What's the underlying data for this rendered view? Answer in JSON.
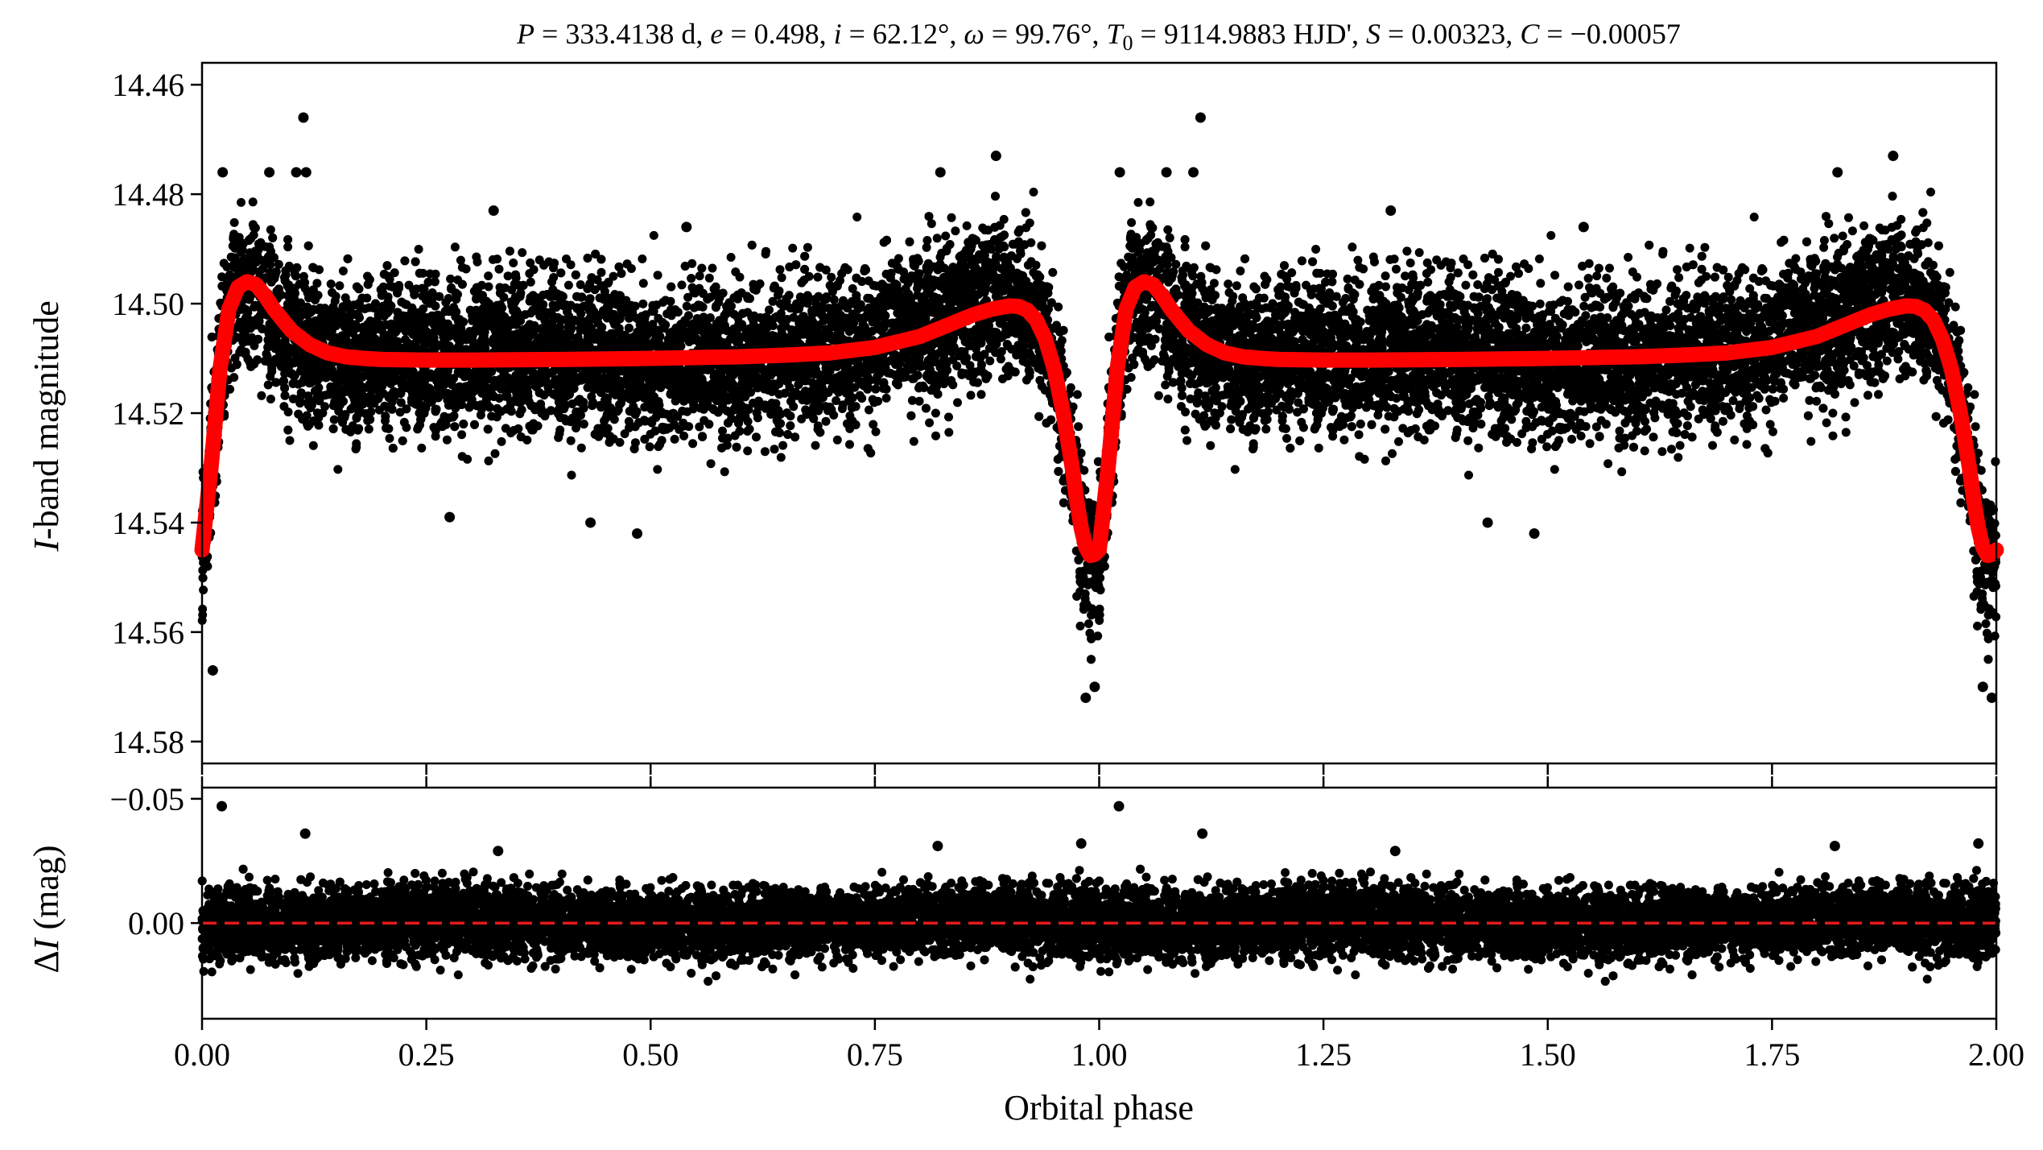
{
  "chart_data": [
    {
      "id": "light_curve",
      "type": "scatter",
      "title": "P = 333.4138 d, e = 0.498, i = 62.12°, ω = 99.76°, T₀ = 9114.9883 HJD', S = 0.00323, C = −0.00057",
      "title_parts": {
        "P_sym": "P",
        "P_val": " = 333.4138 d, ",
        "e_sym": "e",
        "e_val": " = 0.498, ",
        "i_sym": "i",
        "i_val": " = 62.12°, ",
        "w_sym": "ω",
        "w_val": " = 99.76°, ",
        "T_sym": "T",
        "T_sub": "0",
        "T_val": " = 9114.9883 HJD', ",
        "S_sym": "S",
        "S_val": " = 0.00323, ",
        "C_sym": "C",
        "C_val": " = −0.00057"
      },
      "xlabel": "",
      "ylabel": "I-band magnitude",
      "ylabel_parts": {
        "italic": "I",
        "rest": "-band magnitude"
      },
      "xlim": [
        0,
        2
      ],
      "ylim": [
        14.584,
        14.456
      ],
      "y_inverted": true,
      "yticks": [
        14.46,
        14.48,
        14.5,
        14.52,
        14.54,
        14.56,
        14.58
      ],
      "ytick_labels": [
        "14.46",
        "14.48",
        "14.50",
        "14.52",
        "14.54",
        "14.56",
        "14.58"
      ],
      "xticks": [
        0,
        0.25,
        0.5,
        0.75,
        1.0,
        1.25,
        1.5,
        1.75,
        2.0
      ],
      "grid": false,
      "series": [
        {
          "kind": "observations",
          "marker": "circle",
          "color": "#000000",
          "phase_period": 1.0,
          "noise_sigma_mag": 0.007,
          "points_per_phase_cycle": 7000,
          "outliers": [
            {
              "x": 0.012,
              "y": 14.567
            },
            {
              "x": 0.023,
              "y": 14.476
            },
            {
              "x": 0.075,
              "y": 14.476
            },
            {
              "x": 0.113,
              "y": 14.466
            },
            {
              "x": 0.105,
              "y": 14.476
            },
            {
              "x": 0.116,
              "y": 14.476
            },
            {
              "x": 0.325,
              "y": 14.483
            },
            {
              "x": 0.485,
              "y": 14.542
            },
            {
              "x": 0.433,
              "y": 14.54
            },
            {
              "x": 0.276,
              "y": 14.539
            },
            {
              "x": 0.885,
              "y": 14.473
            },
            {
              "x": 0.823,
              "y": 14.476
            },
            {
              "x": 0.985,
              "y": 14.572
            },
            {
              "x": 0.995,
              "y": 14.57
            },
            {
              "x": 1.023,
              "y": 14.476
            },
            {
              "x": 1.075,
              "y": 14.476
            },
            {
              "x": 1.113,
              "y": 14.466
            },
            {
              "x": 1.105,
              "y": 14.476
            },
            {
              "x": 1.325,
              "y": 14.483
            },
            {
              "x": 1.485,
              "y": 14.542
            },
            {
              "x": 1.433,
              "y": 14.54
            },
            {
              "x": 1.885,
              "y": 14.473
            },
            {
              "x": 1.823,
              "y": 14.476
            },
            {
              "x": 1.985,
              "y": 14.57
            },
            {
              "x": 1.995,
              "y": 14.572
            },
            {
              "x": 0.54,
              "y": 14.486
            },
            {
              "x": 1.54,
              "y": 14.486
            }
          ]
        },
        {
          "kind": "model",
          "color": "#ff0000",
          "baseline": 14.5105,
          "x": [
            0.0,
            0.01,
            0.02,
            0.03,
            0.04,
            0.05,
            0.06,
            0.07,
            0.08,
            0.09,
            0.1,
            0.12,
            0.14,
            0.16,
            0.18,
            0.2,
            0.25,
            0.3,
            0.4,
            0.5,
            0.6,
            0.65,
            0.7,
            0.75,
            0.8,
            0.83,
            0.86,
            0.88,
            0.9,
            0.91,
            0.92,
            0.93,
            0.94,
            0.95,
            0.96,
            0.97,
            0.975,
            0.98,
            0.985,
            0.99,
            0.995,
            1.0
          ],
          "y": [
            14.545,
            14.53,
            14.512,
            14.501,
            14.497,
            14.496,
            14.4965,
            14.4985,
            14.501,
            14.503,
            14.505,
            14.5075,
            14.509,
            14.5097,
            14.51,
            14.5102,
            14.5103,
            14.5103,
            14.5102,
            14.51,
            14.5097,
            14.5094,
            14.509,
            14.508,
            14.506,
            14.504,
            14.502,
            14.501,
            14.5004,
            14.5005,
            14.5012,
            14.503,
            14.5065,
            14.512,
            14.52,
            14.53,
            14.536,
            14.541,
            14.5445,
            14.546,
            14.5458,
            14.545
          ]
        }
      ]
    },
    {
      "id": "residuals",
      "type": "scatter",
      "xlabel": "Orbital phase",
      "ylabel": "ΔI (mag)",
      "ylabel_parts": {
        "delta": "Δ",
        "italic": "I",
        "rest": " (mag)"
      },
      "xlim": [
        0,
        2
      ],
      "ylim": [
        0.0385,
        -0.0545
      ],
      "y_inverted": true,
      "yticks": [
        -0.05,
        0.0
      ],
      "ytick_labels": [
        "−0.05",
        "0.00"
      ],
      "xticks": [
        0,
        0.25,
        0.5,
        0.75,
        1.0,
        1.25,
        1.5,
        1.75,
        2.0
      ],
      "xtick_labels": [
        "0.00",
        "0.25",
        "0.50",
        "0.75",
        "1.00",
        "1.25",
        "1.50",
        "1.75",
        "2.00"
      ],
      "grid": false,
      "series": [
        {
          "kind": "residuals",
          "marker": "circle",
          "color": "#000000",
          "noise_sigma_mag": 0.0075,
          "outliers": [
            {
              "x": 0.022,
              "y": -0.047
            },
            {
              "x": 0.115,
              "y": -0.036
            },
            {
              "x": 1.022,
              "y": -0.047
            },
            {
              "x": 1.115,
              "y": -0.036
            },
            {
              "x": 0.98,
              "y": -0.032
            },
            {
              "x": 1.98,
              "y": -0.032
            },
            {
              "x": 0.33,
              "y": -0.029
            },
            {
              "x": 1.33,
              "y": -0.029
            },
            {
              "x": 0.82,
              "y": -0.031
            },
            {
              "x": 1.82,
              "y": -0.031
            }
          ]
        },
        {
          "kind": "zero_line",
          "y": 0.0,
          "color": "#e41a1c",
          "style": "dashed"
        }
      ]
    }
  ]
}
